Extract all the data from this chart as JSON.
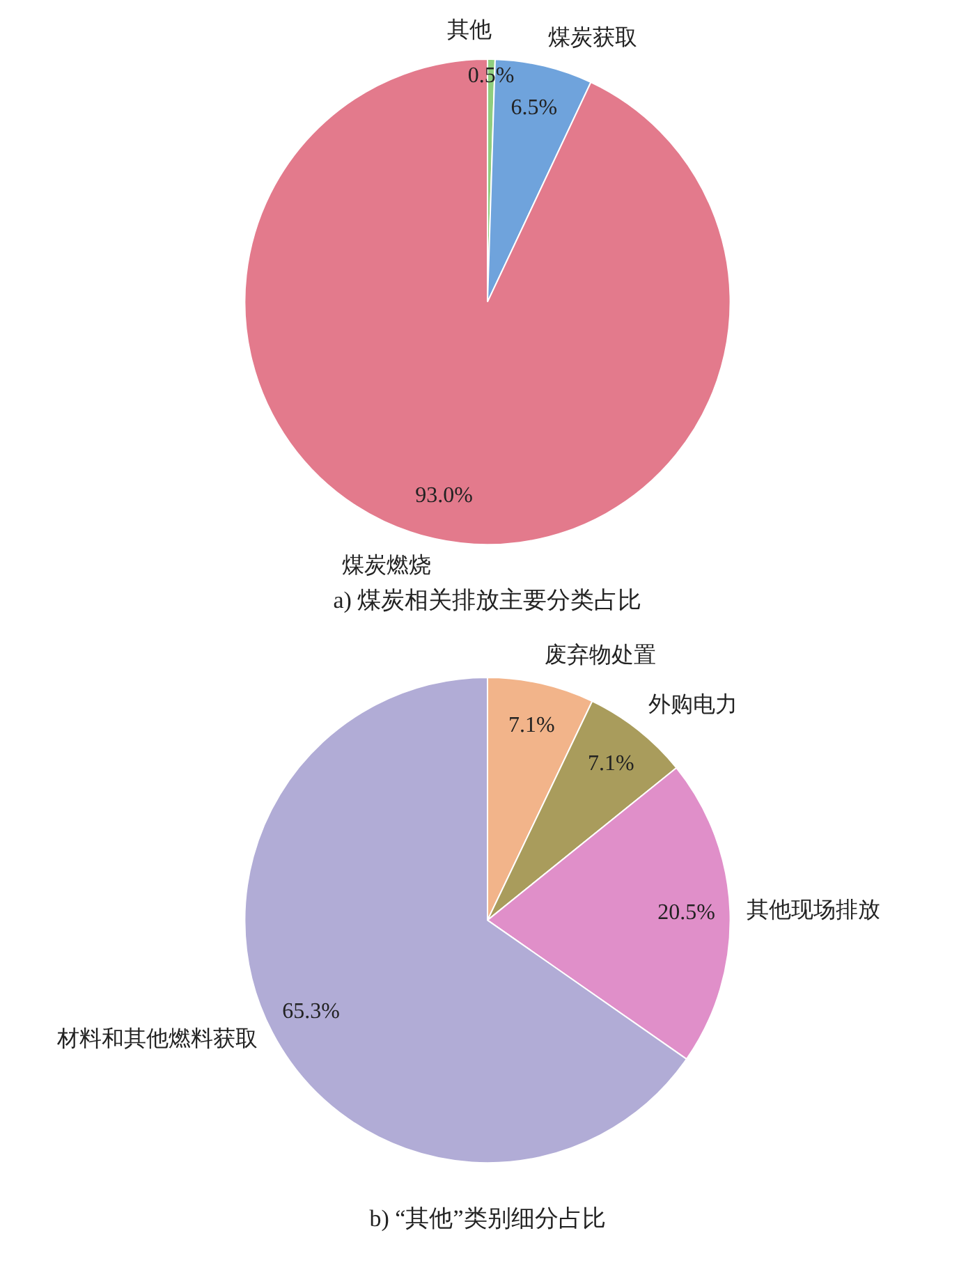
{
  "chart_data": [
    {
      "type": "pie",
      "title": "a) 煤炭相关排放主要分类占比",
      "categories": [
        "其他",
        "煤炭获取",
        "煤炭燃烧"
      ],
      "values": [
        0.5,
        6.5,
        93.0
      ],
      "value_labels": [
        "0.5%",
        "6.5%",
        "93.0%"
      ],
      "colors": [
        "#8fce7e",
        "#6fa3dc",
        "#e37a8c"
      ],
      "legend": false
    },
    {
      "type": "pie",
      "title": "b) “其他”类别细分占比",
      "categories": [
        "废弃物处置",
        "外购电力",
        "其他现场排放",
        "材料和其他燃料获取"
      ],
      "values": [
        7.1,
        7.1,
        20.5,
        65.3
      ],
      "value_labels": [
        "7.1%",
        "7.1%",
        "20.5%",
        "65.3%"
      ],
      "colors": [
        "#f2b48a",
        "#a99c5c",
        "#e08fc9",
        "#b1acd6"
      ],
      "legend": false
    }
  ]
}
